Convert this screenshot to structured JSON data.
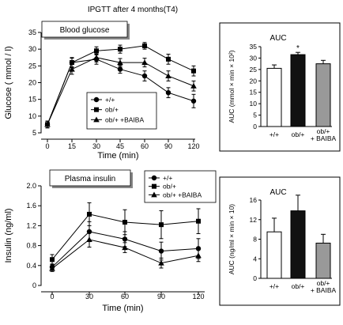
{
  "figure_title": "IPGTT after 4 months(T4)",
  "chart_data": [
    {
      "id": "glucose",
      "type": "line",
      "title": "Blood glucose",
      "xlabel": "Time (min)",
      "ylabel": "Glucose ( mmol / l)",
      "x": [
        0,
        15,
        30,
        45,
        60,
        90,
        120
      ],
      "xticks": [
        "0",
        "15",
        "30",
        "45",
        "60",
        "90",
        "120"
      ],
      "ylim": [
        5,
        35
      ],
      "yticks": [
        "5",
        "10",
        "15",
        "20",
        "25",
        "30",
        "35"
      ],
      "legend_placement": "bottom-left",
      "grid": false,
      "series": [
        {
          "name": "+/+",
          "marker": "circle",
          "values": [
            7.5,
            26,
            27,
            24,
            22,
            17,
            14.5
          ],
          "errors": [
            1,
            1.5,
            1.5,
            1.2,
            1.5,
            1.5,
            2
          ]
        },
        {
          "name": "ob/+",
          "marker": "square",
          "values": [
            7.5,
            26,
            29.5,
            30,
            31,
            27,
            23.5
          ],
          "errors": [
            1,
            1.3,
            1.2,
            1.2,
            1,
            1.5,
            1.5
          ]
        },
        {
          "name": "ob/+ +BAIBA",
          "marker": "triangle",
          "values": [
            7.5,
            24,
            27.5,
            26,
            26,
            22,
            19
          ],
          "errors": [
            1,
            1.5,
            1.3,
            1.2,
            1.3,
            1.5,
            1.5
          ]
        }
      ]
    },
    {
      "id": "glucose_auc",
      "type": "bar",
      "title": "AUC",
      "ylabel": "AUC (mmol × min × 10²)",
      "categories": [
        "+/+",
        "ob/+",
        "ob/+ + BAIBA"
      ],
      "values": [
        25.5,
        31.5,
        27.5
      ],
      "errors": [
        1.5,
        1,
        1.5
      ],
      "colors": [
        "#ffffff",
        "#111111",
        "#999999"
      ],
      "annotations": [
        "",
        "*",
        ""
      ],
      "ylim": [
        0,
        35
      ],
      "yticks": [
        "0",
        "5",
        "10",
        "15",
        "20",
        "25",
        "30",
        "35"
      ]
    },
    {
      "id": "insulin",
      "type": "line",
      "title": "Plasma insulin",
      "xlabel": "Time (min)",
      "ylabel": "Insulin (ng/ml)",
      "x": [
        0,
        30,
        60,
        90,
        120
      ],
      "xticks": [
        "0",
        "30",
        "60",
        "90",
        "120"
      ],
      "ylim": [
        0,
        2.0
      ],
      "yticks": [
        "0",
        "0.4",
        "0.8",
        "1.2",
        "1.6",
        "2.0"
      ],
      "legend_placement": "top-right",
      "grid": false,
      "series": [
        {
          "name": "+/+",
          "marker": "circle",
          "values": [
            0.37,
            1.08,
            0.93,
            0.69,
            0.74
          ],
          "errors": [
            0.06,
            0.2,
            0.15,
            0.18,
            0.2
          ]
        },
        {
          "name": "ob/+",
          "marker": "square",
          "values": [
            0.52,
            1.43,
            1.27,
            1.22,
            1.29
          ],
          "errors": [
            0.1,
            0.23,
            0.25,
            0.28,
            0.25
          ]
        },
        {
          "name": "ob/+ +BAIBA",
          "marker": "triangle",
          "values": [
            0.34,
            0.92,
            0.76,
            0.45,
            0.6
          ],
          "errors": [
            0.06,
            0.15,
            0.1,
            0.1,
            0.12
          ]
        }
      ]
    },
    {
      "id": "insulin_auc",
      "type": "bar",
      "title": "AUC",
      "ylabel": "AUC (ng/ml × min × 10)",
      "categories": [
        "+/+",
        "ob/+",
        "ob/+ + BAIBA"
      ],
      "values": [
        9.5,
        13.8,
        7.2
      ],
      "errors": [
        2.8,
        3.2,
        1.8
      ],
      "colors": [
        "#ffffff",
        "#111111",
        "#999999"
      ],
      "annotations": [
        "",
        "",
        ""
      ],
      "ylim": [
        0,
        16
      ],
      "yticks": [
        "0",
        "4",
        "8",
        "12",
        "16"
      ]
    }
  ]
}
